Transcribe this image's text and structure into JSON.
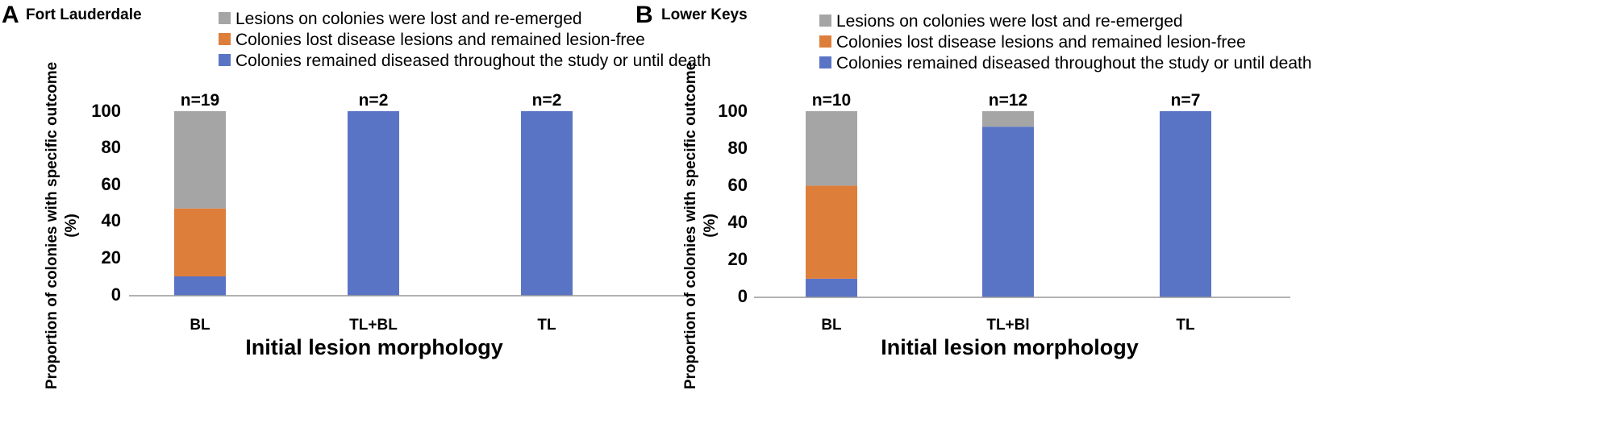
{
  "colors": {
    "reemerged": "#a5a5a5",
    "lost_free": "#dd7e3b",
    "remained": "#5a74c5",
    "axis": "#999999"
  },
  "legend": {
    "reemerged": "Lesions on colonies were lost and re-emerged",
    "lost_free": "Colonies lost disease lesions and remained lesion-free",
    "remained": "Colonies remained diseased throughout the study or until death"
  },
  "chart_data": [
    {
      "type": "bar",
      "stacked": true,
      "panel": "A",
      "title": "Fort Lauderdale",
      "xlabel": "Initial lesion morphology",
      "ylabel_line1": "Proportion of colonies with specific outcome",
      "ylabel_line2": "(%)",
      "ylim": [
        0,
        100
      ],
      "yticks": [
        "0",
        "20",
        "40",
        "60",
        "80",
        "100"
      ],
      "categories": [
        "BL",
        "TL+BL",
        "TL"
      ],
      "n_labels": [
        "n=19",
        "n=2",
        "n=2"
      ],
      "series": [
        {
          "key": "remained",
          "name": "Colonies remained diseased throughout the study or until death",
          "values": [
            10.5,
            100,
            100
          ]
        },
        {
          "key": "lost_free",
          "name": "Colonies lost disease lesions and remained lesion-free",
          "values": [
            36.8,
            0,
            0
          ]
        },
        {
          "key": "reemerged",
          "name": "Lesions on colonies were lost and re-emerged",
          "values": [
            52.7,
            0,
            0
          ]
        }
      ]
    },
    {
      "type": "bar",
      "stacked": true,
      "panel": "B",
      "title": "Lower Keys",
      "xlabel": "Initial lesion morphology",
      "ylabel_line1": "Proportion of colonies with specific outcome",
      "ylabel_line2": "(%)",
      "ylim": [
        0,
        100
      ],
      "yticks": [
        "0",
        "20",
        "40",
        "60",
        "80",
        "100"
      ],
      "categories": [
        "BL",
        "TL+Bl",
        "TL"
      ],
      "n_labels": [
        "n=10",
        "n=12",
        "n=7"
      ],
      "series": [
        {
          "key": "remained",
          "name": "Colonies remained diseased throughout the study or until death",
          "values": [
            10,
            91.7,
            100
          ]
        },
        {
          "key": "lost_free",
          "name": "Colonies lost disease lesions and remained lesion-free",
          "values": [
            50,
            0,
            0
          ]
        },
        {
          "key": "reemerged",
          "name": "Lesions on colonies were lost and re-emerged",
          "values": [
            40,
            8.3,
            0
          ]
        }
      ]
    }
  ]
}
